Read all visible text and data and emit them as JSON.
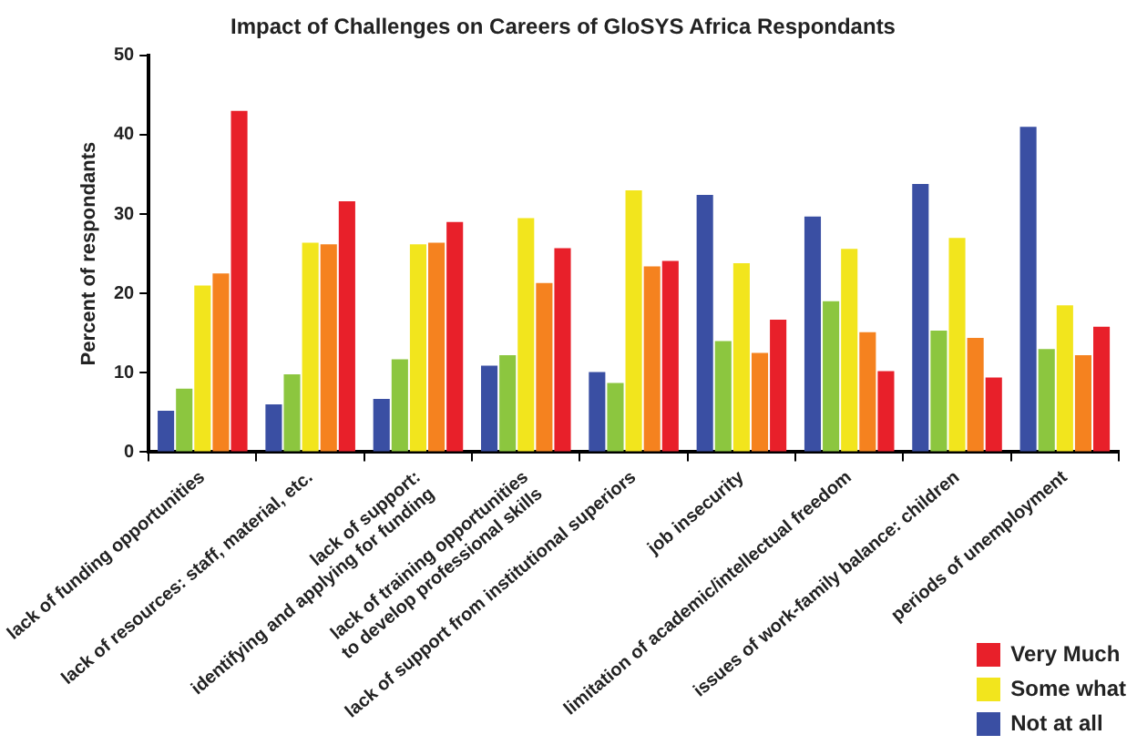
{
  "chart_data": {
    "type": "bar",
    "title": "Impact of Challenges on Careers of GloSYS Africa Respondants",
    "ylabel": "Percent of respondants",
    "categories": [
      "lack of funding opportunities",
      "lack of resources: staff, material, etc.",
      "lack of support:\nidentifying and applying for funding",
      "lack of training opportunities\nto develop professional skills",
      "lack of support from institutional superiors",
      "job insecurity",
      "limitation of academic/intellectual freedom",
      "issues of work-family balance: children",
      "periods of unemployment"
    ],
    "series": [
      {
        "name": "Not at all",
        "color": "#3a4fa3",
        "values": [
          5.2,
          6,
          6.7,
          10.9,
          10.1,
          32.4,
          29.7,
          33.8,
          41
        ]
      },
      {
        "color": "#8cc63f",
        "values": [
          8,
          9.8,
          11.7,
          12.2,
          8.7,
          14,
          19,
          15.3,
          13
        ]
      },
      {
        "name": "Some what",
        "color": "#f2e51d",
        "values": [
          21,
          26.4,
          26.2,
          29.5,
          33,
          23.8,
          25.6,
          27,
          18.5
        ]
      },
      {
        "color": "#f5821f",
        "values": [
          22.5,
          26.2,
          26.4,
          21.3,
          23.4,
          12.5,
          15.1,
          14.4,
          12.2
        ]
      },
      {
        "name": "Very Much",
        "color": "#e8202a",
        "values": [
          43,
          31.6,
          29,
          25.7,
          24.1,
          16.7,
          10.2,
          9.4,
          15.8
        ]
      }
    ],
    "ylim": [
      0,
      50
    ],
    "yticks": [
      0,
      10,
      20,
      30,
      40,
      50
    ],
    "legend": "bottom right"
  }
}
